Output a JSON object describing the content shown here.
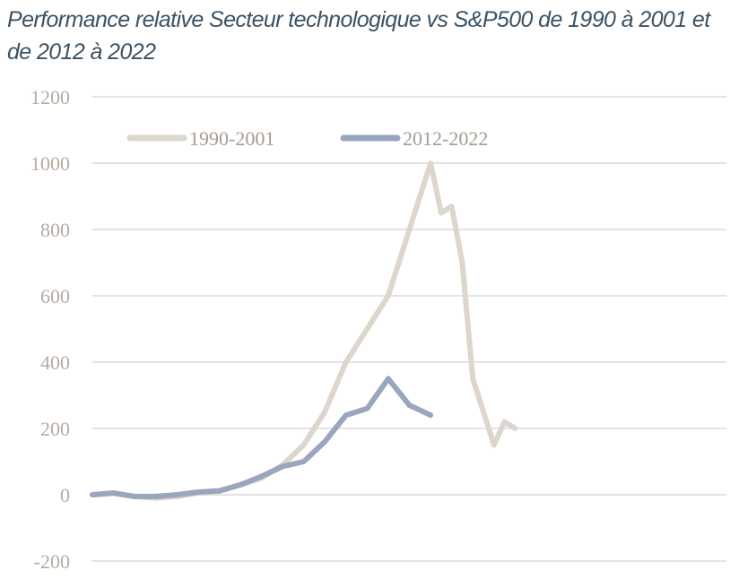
{
  "chart_data": {
    "type": "line",
    "title": "Performance relative Secteur technologique vs S&P500 de 1990 à 2001 et de 2012 à 2022",
    "xlabel": "",
    "ylabel": "",
    "ylim": [
      -200,
      1200
    ],
    "yticks": [
      "-200",
      "0",
      "200",
      "400",
      "600",
      "800",
      "1000",
      "1200"
    ],
    "grid": true,
    "legend_position": "top-left",
    "colors": {
      "series_1990": "#dcd6cc",
      "series_2012": "#9aa6bd",
      "grid": "#e3e3e3",
      "title": "#3c5263"
    },
    "x": [
      0,
      10,
      20,
      30,
      40,
      50,
      60,
      70,
      80,
      90,
      100,
      110,
      120,
      130,
      140,
      150,
      160,
      165,
      170,
      175,
      180,
      185,
      190,
      195,
      200,
      205,
      210,
      215,
      220,
      225,
      230,
      235,
      240,
      245,
      250,
      255,
      260,
      265,
      270,
      275,
      280,
      285,
      290,
      295,
      300
    ],
    "series": [
      {
        "name": "1990-2001",
        "values": [
          0,
          5,
          -5,
          -10,
          -5,
          5,
          10,
          30,
          50,
          90,
          150,
          250,
          400,
          500,
          600,
          800,
          1000,
          850,
          870,
          700,
          350,
          250,
          150,
          220,
          200,
          null,
          null,
          null,
          null,
          null,
          null,
          null,
          null,
          null,
          null,
          null,
          null,
          null,
          null,
          null,
          null,
          null,
          null,
          null,
          null
        ]
      },
      {
        "name": "2012-2022",
        "values": [
          0,
          5,
          -5,
          -5,
          0,
          8,
          12,
          30,
          55,
          85,
          100,
          160,
          240,
          260,
          350,
          270,
          240,
          null,
          null,
          null,
          null,
          null,
          null,
          null,
          null,
          null,
          null,
          null,
          null,
          null,
          null,
          null,
          null,
          null,
          null,
          null,
          null,
          null,
          null,
          null,
          null,
          null,
          null,
          null,
          null
        ]
      }
    ]
  }
}
